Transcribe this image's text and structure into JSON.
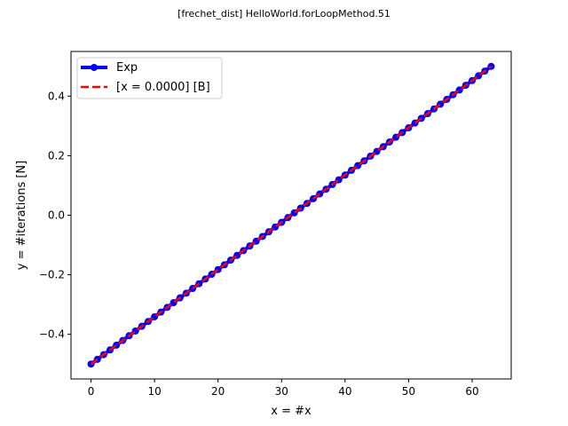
{
  "chart_data": {
    "type": "line",
    "suptitle": "[frechet_dist] HelloWorld.forLoopMethod.51",
    "xlabel": "x = #x",
    "ylabel": "y = #iterations [N]",
    "xlim": [
      -3.15,
      66.15
    ],
    "ylim": [
      -0.55,
      0.55
    ],
    "xticks": [
      0,
      10,
      20,
      30,
      40,
      50,
      60
    ],
    "xtick_labels": [
      "0",
      "10",
      "20",
      "30",
      "40",
      "50",
      "60"
    ],
    "yticks": [
      -0.4,
      -0.2,
      0.0,
      0.2,
      0.4
    ],
    "ytick_labels": [
      "−0.4",
      "−0.2",
      "0.0",
      "0.2",
      "0.4"
    ],
    "grid": false,
    "legend_position": "top-left",
    "series": [
      {
        "name": "Exp",
        "style": "solid line with circle markers",
        "color": "#0000ff",
        "x_start": 0,
        "x_end": 63,
        "x_step": 1,
        "y_start": -0.5,
        "y_end": 0.5
      },
      {
        "name": "[x = 0.0000] [B]",
        "style": "dashed line",
        "color": "#ff0000",
        "x": [
          0,
          63
        ],
        "y": [
          -0.5,
          0.5
        ]
      }
    ]
  }
}
